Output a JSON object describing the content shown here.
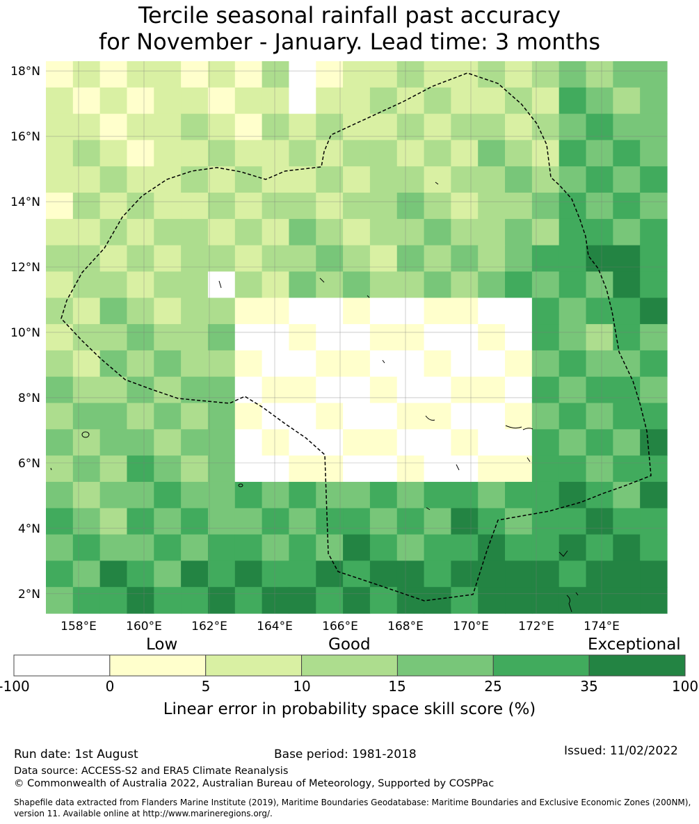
{
  "title_line1": "Tercile seasonal rainfall past accuracy",
  "title_line2": "for November - January. Lead time: 3 months",
  "map": {
    "lat_labels": [
      "18°N",
      "16°N",
      "14°N",
      "12°N",
      "10°N",
      "8°N",
      "6°N",
      "4°N",
      "2°N"
    ],
    "lon_labels": [
      "158°E",
      "160°E",
      "162°E",
      "164°E",
      "166°E",
      "168°E",
      "170°E",
      "172°E",
      "174°E"
    ],
    "lat_range": [
      1.4,
      18.3
    ],
    "lon_range": [
      157.0,
      176.0
    ],
    "grid_lines": true,
    "boundary_style": "dashed black line (EEZ)"
  },
  "legend": {
    "words": [
      "Low",
      "Good",
      "Exceptional"
    ],
    "ticks": [
      "-100",
      "0",
      "5",
      "10",
      "15",
      "25",
      "35",
      "100"
    ],
    "colors": [
      "#ffffff",
      "#ffffcc",
      "#d9f0a3",
      "#addd8e",
      "#78c679",
      "#41ab5d",
      "#238443"
    ],
    "label": "Linear error in probability space skill score (%)"
  },
  "footer": {
    "run_date": "Run date: 1st August",
    "base_period": "Base period: 1981-2018",
    "issued": "Issued: 11/02/2022",
    "data_source": "Data source: ACCESS-S2 and ERA5 Climate Reanalysis",
    "copyright": "© Commonwealth of Australia 2022, Australian Bureau of Meteorology, Supported by COSPPac",
    "shapefile_line1": "Shapefile data extracted from Flanders Marine Institute (2019), Maritime Boundaries Geodatabase: Maritime Boundaries and Exclusive Economic Zones (200NM),",
    "shapefile_line2": "version 11. Available online at http://www.marineregions.org/."
  }
}
